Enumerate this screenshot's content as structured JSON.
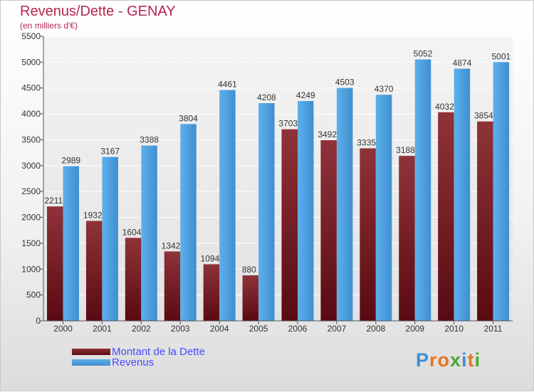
{
  "chart_data": {
    "type": "bar",
    "title": "Revenus/Dette - GENAY",
    "subtitle": "(en milliers d'€)",
    "categories": [
      "2000",
      "2001",
      "2002",
      "2003",
      "2004",
      "2005",
      "2006",
      "2007",
      "2008",
      "2009",
      "2010",
      "2011"
    ],
    "series": [
      {
        "name": "Montant de la Dette",
        "color": "#8b2d33",
        "values": [
          2211,
          1932,
          1604,
          1342,
          1094,
          880,
          3703,
          3492,
          3335,
          3188,
          4032,
          3854
        ]
      },
      {
        "name": "Revenus",
        "color": "#5aa9e6",
        "values": [
          2989,
          3167,
          3388,
          3804,
          4461,
          4208,
          4249,
          4503,
          4370,
          5052,
          4874,
          5001
        ]
      }
    ],
    "ylim": [
      0,
      5500
    ],
    "yticks": [
      0,
      500,
      1000,
      1500,
      2000,
      2500,
      3000,
      3500,
      4000,
      4500,
      5000,
      5500
    ],
    "grid": true,
    "legend_position": "bottom-left"
  },
  "logo": {
    "text": "Proxiti",
    "letters": [
      "P",
      "r",
      "o",
      "x",
      "i",
      "t",
      "i"
    ],
    "colors": [
      "#3a8fd8",
      "#e8761e",
      "#e8761e",
      "#4aa832",
      "#3a8fd8",
      "#e8761e",
      "#4aa832"
    ]
  }
}
